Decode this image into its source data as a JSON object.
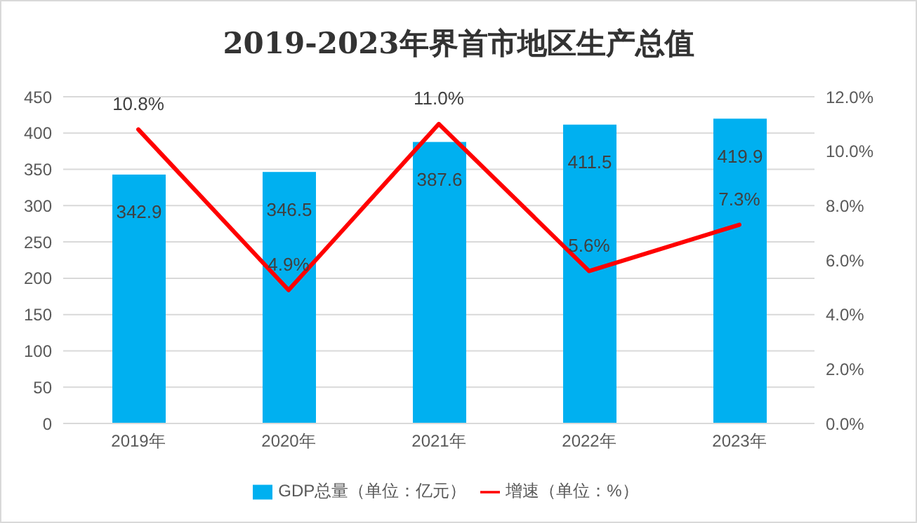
{
  "chart_data": {
    "type": "bar",
    "title": "2019-2023年界首市地区生产总值",
    "categories": [
      "2019年",
      "2020年",
      "2021年",
      "2022年",
      "2023年"
    ],
    "series": [
      {
        "name": "GDP总量（单位：亿元）",
        "color": "#00b0f0",
        "values": [
          342.9,
          346.5,
          387.6,
          411.5,
          419.9
        ],
        "value_labels": [
          "342.9",
          "346.5",
          "387.6",
          "411.5",
          "419.9"
        ]
      },
      {
        "name": "增速（单位：%）",
        "type": "line",
        "axis": "y2",
        "color": "#ff0000",
        "values": [
          10.8,
          4.9,
          11.0,
          5.6,
          7.3
        ],
        "value_labels": [
          "10.8%",
          "4.9%",
          "11.0%",
          "5.6%",
          "7.3%"
        ]
      }
    ],
    "ylim": [
      0,
      450
    ],
    "yticks": [
      0,
      50,
      100,
      150,
      200,
      250,
      300,
      350,
      400,
      450
    ],
    "y2lim": [
      0,
      12
    ],
    "y2ticks": [
      {
        "value": 0,
        "label": "0.0%"
      },
      {
        "value": 2,
        "label": "2.0%"
      },
      {
        "value": 4,
        "label": "4.0%"
      },
      {
        "value": 6,
        "label": "6.0%"
      },
      {
        "value": 8,
        "label": "8.0%"
      },
      {
        "value": 10,
        "label": "10.0%"
      },
      {
        "value": 12,
        "label": "12.0%"
      }
    ],
    "grid": "y",
    "legend": "bottom",
    "marker": "none",
    "line_style": "solid"
  }
}
